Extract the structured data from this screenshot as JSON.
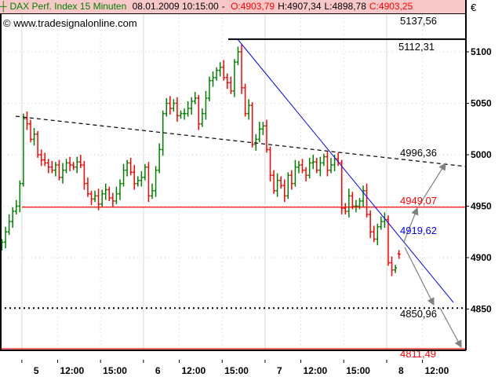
{
  "header": {
    "icon": "bar-chart-icon",
    "title": "DAX Perf. Index 15 Minuten",
    "datetime": "08.01.2009 10:15:00",
    "sep": "-",
    "open": "O:4903,79",
    "high": "H:4907,34",
    "low": "L:4898,78",
    "close": "C:4903,25",
    "currency": "€"
  },
  "copyright": "© www.tradesignalonline.com",
  "colors": {
    "up": "#008000",
    "down": "#ff0000",
    "trend": "#0000ff",
    "support": "#ff0000",
    "arrow": "#808080",
    "header_bg": "#f8c8c8"
  },
  "chart_data": {
    "type": "ohlc",
    "title": "DAX Perf. Index 15 Minuten",
    "ylim": [
      4805,
      5145
    ],
    "yticks": [
      4850,
      4900,
      4950,
      5000,
      5050,
      5100
    ],
    "ytick_labels": [
      "4850",
      "4900",
      "4950",
      "5000",
      "5050",
      "5100"
    ],
    "xtick_labels": [
      {
        "label": "5",
        "bar": 6,
        "major": true
      },
      {
        "label": "12:00",
        "bar": 16,
        "major": false
      },
      {
        "label": "15:00",
        "bar": 28,
        "major": false
      },
      {
        "label": "6",
        "bar": 40,
        "major": true
      },
      {
        "label": "12:00",
        "bar": 50,
        "major": false
      },
      {
        "label": "15:00",
        "bar": 62,
        "major": false
      },
      {
        "label": "7",
        "bar": 74,
        "major": true
      },
      {
        "label": "12:00",
        "bar": 84,
        "major": false
      },
      {
        "label": "15:00",
        "bar": 96,
        "major": false
      },
      {
        "label": "8",
        "bar": 108,
        "major": true
      },
      {
        "label": "12:00",
        "bar": 118,
        "major": false
      }
    ],
    "grid": true,
    "closes": [
      4915,
      4925,
      4935,
      4945,
      4950,
      4972,
      5035,
      5030,
      5015,
      5020,
      5000,
      4995,
      4992,
      4988,
      4985,
      4990,
      4978,
      4985,
      4992,
      4990,
      4988,
      4993,
      4990,
      4972,
      4962,
      4957,
      4960,
      4952,
      4962,
      4966,
      4958,
      4955,
      4962,
      4972,
      4985,
      4992,
      4983,
      4972,
      4975,
      4978,
      4988,
      4960,
      4965,
      4985,
      5005,
      5040,
      5050,
      5045,
      5050,
      5038,
      5040,
      5040,
      5045,
      5052,
      5055,
      5030,
      5040,
      5055,
      5072,
      5075,
      5082,
      5085,
      5075,
      5070,
      5062,
      5090,
      5100,
      5065,
      5040,
      5048,
      5010,
      5015,
      5025,
      5028,
      5005,
      4980,
      4965,
      4975,
      4970,
      4960,
      4980,
      4972,
      4988,
      4990,
      4985,
      4980,
      4992,
      4993,
      4985,
      4992,
      4998,
      4985,
      4990,
      4996,
      4992,
      4948,
      4945,
      4960,
      4950,
      4950,
      4955,
      4965,
      4942,
      4925,
      4918,
      4930,
      4935,
      4937,
      4895,
      4888,
      4890,
      4903.25
    ],
    "last_bar": {
      "open": 4903.79,
      "high": 4907.34,
      "low": 4898.78,
      "close": 4903.25
    },
    "levels": [
      {
        "label": "5137,56",
        "value": 5137.56,
        "style": "none",
        "color": "#000000"
      },
      {
        "label": "5112,31",
        "value": 5112.31,
        "style": "solid",
        "color": "#000000"
      },
      {
        "label": "4996,36",
        "value": 4996.36,
        "style": "dashed-trend",
        "color": "#000000"
      },
      {
        "label": "4949,07",
        "value": 4949.07,
        "style": "solid",
        "color": "#ff0000"
      },
      {
        "label": "4919,62",
        "value": 4919.62,
        "style": "trend",
        "color": "#0000ff"
      },
      {
        "label": "4850,96",
        "value": 4850.96,
        "style": "dotted",
        "color": "#000000"
      },
      {
        "label": "4811,49",
        "value": 4811.49,
        "style": "solid",
        "color": "#ff0000"
      }
    ]
  }
}
